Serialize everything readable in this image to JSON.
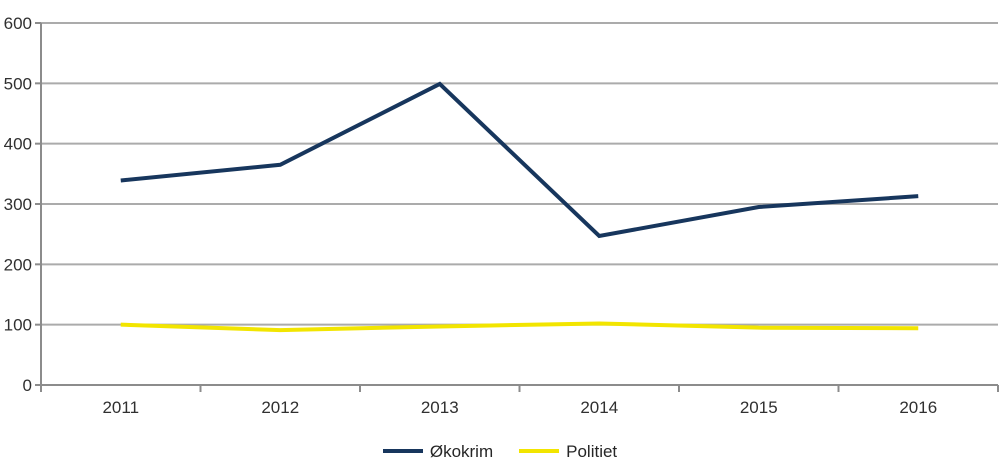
{
  "chart_data": {
    "type": "line",
    "title": "",
    "xlabel": "",
    "ylabel": "",
    "categories": [
      "2011",
      "2012",
      "2013",
      "2014",
      "2015",
      "2016"
    ],
    "series": [
      {
        "name": "Økokrim",
        "color": "#17365D",
        "values": [
          339,
          365,
          499,
          247,
          295,
          313
        ]
      },
      {
        "name": "Politiet",
        "color": "#F2E500",
        "values": [
          100,
          91,
          97,
          102,
          95,
          94
        ]
      }
    ],
    "ylim": [
      0,
      600
    ],
    "ytick_step": 100,
    "grid": "horizontal",
    "legend_position": "bottom",
    "colors": {
      "gridline": "#ABABAB",
      "axis": "#8C8C8C",
      "tick_text": "#303030",
      "background": "#FFFFFF"
    }
  }
}
